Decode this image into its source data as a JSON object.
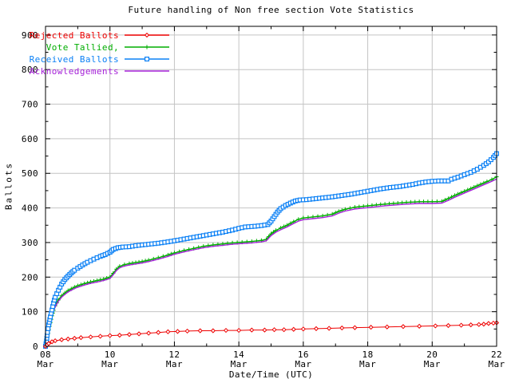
{
  "chart_data": {
    "type": "line",
    "title": "Future handling of Non free section Vote Statistics",
    "xlabel": "Date/Time (UTC)",
    "ylabel": "Ballots",
    "xlim": [
      8,
      22
    ],
    "ylim": [
      0,
      925
    ],
    "grid": true,
    "legend_position": "top-left",
    "background_color": "#ffffff",
    "border_color": "#000000",
    "grid_color": "#c4c4c4",
    "y_ticks": [
      0,
      100,
      200,
      300,
      400,
      500,
      600,
      700,
      800,
      900
    ],
    "y_minor_ticks": [
      50,
      150,
      250,
      350,
      450,
      550,
      650,
      750,
      850
    ],
    "x_ticks": [
      {
        "day": 8,
        "label": "08",
        "month": "Mar"
      },
      {
        "day": 10,
        "label": "10",
        "month": "Mar"
      },
      {
        "day": 12,
        "label": "12",
        "month": "Mar"
      },
      {
        "day": 14,
        "label": "14",
        "month": "Mar"
      },
      {
        "day": 16,
        "label": "16",
        "month": "Mar"
      },
      {
        "day": 18,
        "label": "18",
        "month": "Mar"
      },
      {
        "day": 20,
        "label": "20",
        "month": "Mar"
      },
      {
        "day": 22,
        "label": "22",
        "month": "Mar"
      }
    ],
    "x_minor_ticks": [
      9,
      11,
      13,
      15,
      17,
      19,
      21
    ],
    "series": [
      {
        "name": "Rejected Ballots",
        "color": "#ee0000",
        "marker": "diamond",
        "line_width": 1,
        "data": [
          [
            8,
            0
          ],
          [
            8.05,
            4
          ],
          [
            8.1,
            8
          ],
          [
            8.2,
            13
          ],
          [
            8.3,
            16
          ],
          [
            8.5,
            19
          ],
          [
            8.7,
            21
          ],
          [
            8.9,
            23
          ],
          [
            9.1,
            25
          ],
          [
            9.4,
            27
          ],
          [
            9.7,
            29
          ],
          [
            10,
            31
          ],
          [
            10.3,
            32
          ],
          [
            10.6,
            34
          ],
          [
            10.9,
            36
          ],
          [
            11.2,
            38
          ],
          [
            11.5,
            40
          ],
          [
            11.8,
            42
          ],
          [
            12.1,
            43
          ],
          [
            12.4,
            44
          ],
          [
            12.8,
            45
          ],
          [
            13.2,
            45
          ],
          [
            13.6,
            46
          ],
          [
            14,
            46
          ],
          [
            14.4,
            47
          ],
          [
            14.8,
            47
          ],
          [
            15.1,
            48
          ],
          [
            15.4,
            48
          ],
          [
            15.7,
            49
          ],
          [
            16,
            50
          ],
          [
            16.4,
            51
          ],
          [
            16.8,
            52
          ],
          [
            17.2,
            53
          ],
          [
            17.6,
            54
          ],
          [
            18.1,
            55
          ],
          [
            18.6,
            56
          ],
          [
            19.1,
            57
          ],
          [
            19.6,
            58
          ],
          [
            20.1,
            59
          ],
          [
            20.5,
            60
          ],
          [
            20.9,
            61
          ],
          [
            21.2,
            62
          ],
          [
            21.45,
            63
          ],
          [
            21.6,
            64
          ],
          [
            21.75,
            66
          ],
          [
            21.9,
            67
          ],
          [
            22,
            68
          ]
        ]
      },
      {
        "name": "Vote Tallied,",
        "color": "#00ad00",
        "marker": "plus",
        "line_width": 1.4,
        "data": [
          [
            8,
            0
          ],
          [
            8.03,
            10
          ],
          [
            8.06,
            28
          ],
          [
            8.1,
            48
          ],
          [
            8.15,
            68
          ],
          [
            8.2,
            88
          ],
          [
            8.25,
            104
          ],
          [
            8.3,
            117
          ],
          [
            8.4,
            134
          ],
          [
            8.5,
            146
          ],
          [
            8.6,
            154
          ],
          [
            8.7,
            161
          ],
          [
            8.8,
            166
          ],
          [
            8.9,
            171
          ],
          [
            9,
            175
          ],
          [
            9.2,
            181
          ],
          [
            9.4,
            186
          ],
          [
            9.6,
            190
          ],
          [
            9.8,
            194
          ],
          [
            10,
            200
          ],
          [
            10.1,
            211
          ],
          [
            10.2,
            223
          ],
          [
            10.3,
            231
          ],
          [
            10.45,
            236
          ],
          [
            10.6,
            239
          ],
          [
            10.8,
            242
          ],
          [
            11,
            245
          ],
          [
            11.2,
            249
          ],
          [
            11.5,
            256
          ],
          [
            11.8,
            264
          ],
          [
            12,
            270
          ],
          [
            12.3,
            277
          ],
          [
            12.6,
            283
          ],
          [
            12.9,
            289
          ],
          [
            13.2,
            293
          ],
          [
            13.5,
            296
          ],
          [
            13.8,
            299
          ],
          [
            14.1,
            301
          ],
          [
            14.4,
            303
          ],
          [
            14.7,
            306
          ],
          [
            14.85,
            309
          ],
          [
            15,
            325
          ],
          [
            15.15,
            335
          ],
          [
            15.3,
            342
          ],
          [
            15.5,
            350
          ],
          [
            15.7,
            360
          ],
          [
            15.85,
            367
          ],
          [
            16,
            371
          ],
          [
            16.3,
            374
          ],
          [
            16.6,
            377
          ],
          [
            16.9,
            382
          ],
          [
            17.1,
            390
          ],
          [
            17.3,
            396
          ],
          [
            17.6,
            402
          ],
          [
            18,
            406
          ],
          [
            18.4,
            410
          ],
          [
            18.8,
            413
          ],
          [
            19.2,
            416
          ],
          [
            19.6,
            418
          ],
          [
            20,
            418
          ],
          [
            20.3,
            419
          ],
          [
            20.5,
            427
          ],
          [
            20.7,
            436
          ],
          [
            20.9,
            444
          ],
          [
            21.1,
            452
          ],
          [
            21.3,
            460
          ],
          [
            21.5,
            468
          ],
          [
            21.7,
            476
          ],
          [
            21.85,
            482
          ],
          [
            22,
            490
          ]
        ]
      },
      {
        "name": "Received Ballots",
        "color": "#0b80f5",
        "marker": "square",
        "line_width": 2.4,
        "data": [
          [
            8,
            0
          ],
          [
            8.03,
            15
          ],
          [
            8.06,
            40
          ],
          [
            8.1,
            62
          ],
          [
            8.15,
            85
          ],
          [
            8.2,
            105
          ],
          [
            8.25,
            125
          ],
          [
            8.3,
            142
          ],
          [
            8.4,
            162
          ],
          [
            8.5,
            180
          ],
          [
            8.6,
            193
          ],
          [
            8.7,
            203
          ],
          [
            8.8,
            212
          ],
          [
            8.9,
            220
          ],
          [
            9,
            226
          ],
          [
            9.15,
            235
          ],
          [
            9.3,
            243
          ],
          [
            9.5,
            252
          ],
          [
            9.7,
            260
          ],
          [
            9.85,
            265
          ],
          [
            10,
            272
          ],
          [
            10.1,
            280
          ],
          [
            10.25,
            285
          ],
          [
            10.4,
            287
          ],
          [
            10.6,
            288
          ],
          [
            10.8,
            291
          ],
          [
            11,
            293
          ],
          [
            11.2,
            295
          ],
          [
            11.5,
            298
          ],
          [
            11.8,
            302
          ],
          [
            12,
            305
          ],
          [
            12.3,
            310
          ],
          [
            12.6,
            315
          ],
          [
            12.9,
            320
          ],
          [
            13.2,
            325
          ],
          [
            13.5,
            330
          ],
          [
            13.8,
            336
          ],
          [
            14,
            341
          ],
          [
            14.2,
            345
          ],
          [
            14.5,
            347
          ],
          [
            14.7,
            349
          ],
          [
            14.9,
            352
          ],
          [
            15,
            362
          ],
          [
            15.1,
            375
          ],
          [
            15.2,
            388
          ],
          [
            15.3,
            398
          ],
          [
            15.45,
            407
          ],
          [
            15.6,
            414
          ],
          [
            15.75,
            420
          ],
          [
            15.9,
            423
          ],
          [
            16.1,
            424
          ],
          [
            16.3,
            426
          ],
          [
            16.6,
            429
          ],
          [
            16.9,
            432
          ],
          [
            17.2,
            436
          ],
          [
            17.5,
            440
          ],
          [
            17.8,
            445
          ],
          [
            18.1,
            450
          ],
          [
            18.4,
            455
          ],
          [
            18.7,
            459
          ],
          [
            19,
            462
          ],
          [
            19.2,
            465
          ],
          [
            19.4,
            468
          ],
          [
            19.6,
            472
          ],
          [
            19.8,
            475
          ],
          [
            20,
            477
          ],
          [
            20.2,
            478
          ],
          [
            20.5,
            478
          ],
          [
            20.6,
            483
          ],
          [
            20.8,
            489
          ],
          [
            21,
            496
          ],
          [
            21.2,
            503
          ],
          [
            21.4,
            512
          ],
          [
            21.6,
            523
          ],
          [
            21.75,
            533
          ],
          [
            21.9,
            546
          ],
          [
            22,
            557
          ]
        ]
      },
      {
        "name": "Acknowledgements",
        "color": "#a520d8",
        "marker": "none",
        "line_width": 1.4,
        "data": [
          [
            8,
            0
          ],
          [
            8.04,
            14
          ],
          [
            8.08,
            35
          ],
          [
            8.12,
            55
          ],
          [
            8.17,
            75
          ],
          [
            8.22,
            95
          ],
          [
            8.3,
            114
          ],
          [
            8.4,
            130
          ],
          [
            8.5,
            142
          ],
          [
            8.6,
            150
          ],
          [
            8.7,
            157
          ],
          [
            8.8,
            162
          ],
          [
            8.9,
            167
          ],
          [
            9,
            171
          ],
          [
            9.2,
            177
          ],
          [
            9.4,
            182
          ],
          [
            9.6,
            186
          ],
          [
            9.8,
            190
          ],
          [
            10,
            196
          ],
          [
            10.1,
            207
          ],
          [
            10.2,
            219
          ],
          [
            10.3,
            227
          ],
          [
            10.45,
            232
          ],
          [
            10.6,
            235
          ],
          [
            10.8,
            238
          ],
          [
            11,
            241
          ],
          [
            11.2,
            245
          ],
          [
            11.5,
            252
          ],
          [
            11.8,
            260
          ],
          [
            12,
            266
          ],
          [
            12.3,
            273
          ],
          [
            12.6,
            279
          ],
          [
            12.9,
            285
          ],
          [
            13.2,
            289
          ],
          [
            13.5,
            292
          ],
          [
            13.8,
            295
          ],
          [
            14.1,
            297
          ],
          [
            14.4,
            299
          ],
          [
            14.7,
            302
          ],
          [
            14.85,
            305
          ],
          [
            15,
            320
          ],
          [
            15.15,
            330
          ],
          [
            15.3,
            337
          ],
          [
            15.5,
            345
          ],
          [
            15.7,
            355
          ],
          [
            15.85,
            362
          ],
          [
            16,
            366
          ],
          [
            16.3,
            369
          ],
          [
            16.6,
            372
          ],
          [
            16.9,
            377
          ],
          [
            17.1,
            385
          ],
          [
            17.3,
            391
          ],
          [
            17.6,
            397
          ],
          [
            18,
            401
          ],
          [
            18.4,
            405
          ],
          [
            18.8,
            408
          ],
          [
            19.2,
            411
          ],
          [
            19.6,
            413
          ],
          [
            20,
            413
          ],
          [
            20.3,
            414
          ],
          [
            20.5,
            422
          ],
          [
            20.7,
            431
          ],
          [
            20.9,
            439
          ],
          [
            21.1,
            447
          ],
          [
            21.3,
            455
          ],
          [
            21.5,
            463
          ],
          [
            21.7,
            471
          ],
          [
            21.85,
            477
          ],
          [
            22,
            484
          ]
        ]
      }
    ]
  }
}
